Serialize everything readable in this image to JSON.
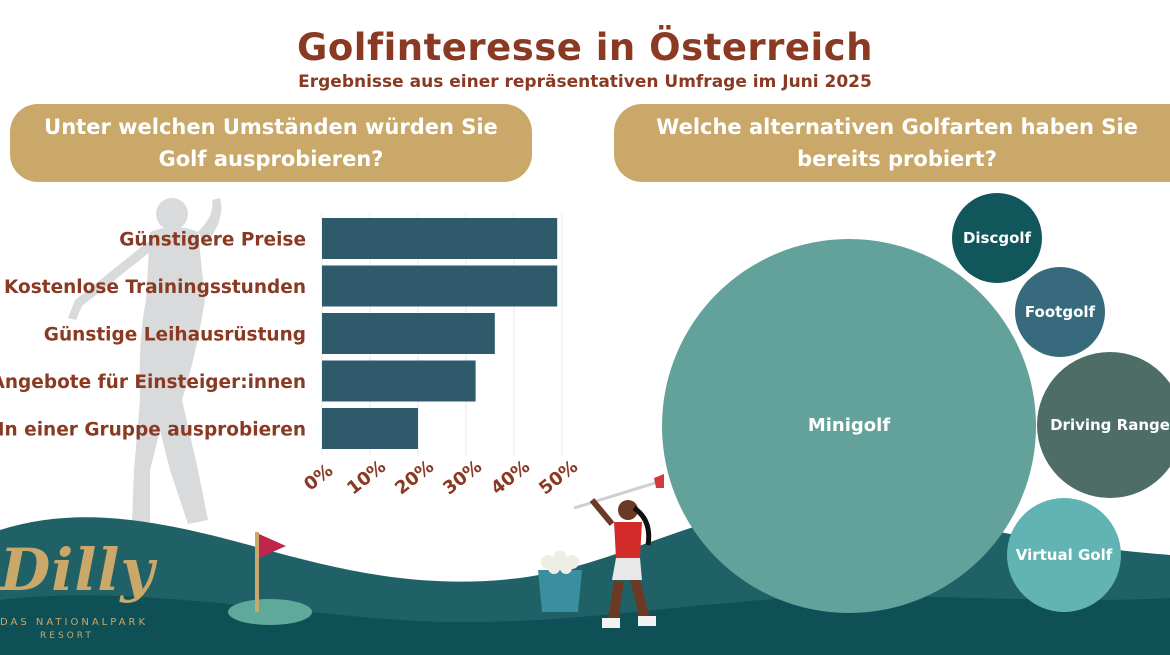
{
  "header": {
    "title": "Golfinteresse in Österreich",
    "subtitle": "Ergebnisse aus einer repräsentativen Umfrage im Juni 2025"
  },
  "questions": {
    "left": "Unter welchen Umständen würden Sie\nGolf ausprobieren?",
    "right": "Welche alternativen Golfarten haben Sie\nbereits probiert?"
  },
  "logo": {
    "name": "Dilly",
    "line1": "DAS NATIONALPARK",
    "line2": "RESORT"
  },
  "colors": {
    "title": "#8a3a22",
    "banner": "#c9a869",
    "bar": "#2e5a6c",
    "ground": "#0f5057",
    "hill": "#1f6167"
  },
  "chart_data": [
    {
      "type": "bar",
      "orientation": "horizontal",
      "categories": [
        "Günstigere Preise",
        "Kostenlose Trainingsstunden",
        "Günstige Leihausrüstung",
        "Angebote für Einsteiger:innen",
        "In einer Gruppe ausprobieren"
      ],
      "values": [
        49,
        49,
        36,
        32,
        20
      ],
      "xlim": [
        0,
        50
      ],
      "ticks": [
        "0%",
        "10%",
        "20%",
        "30%",
        "40%",
        "50%"
      ],
      "color": "#2e5a6c",
      "grid": true
    },
    {
      "type": "bubble",
      "labels": [
        "Minigolf",
        "Discgolf",
        "Footgolf",
        "Driving Range",
        "Virtual Golf"
      ],
      "colors": [
        "#62a29a",
        "#10565b",
        "#386a7d",
        "#4d6d66",
        "#62b4b4"
      ]
    }
  ]
}
